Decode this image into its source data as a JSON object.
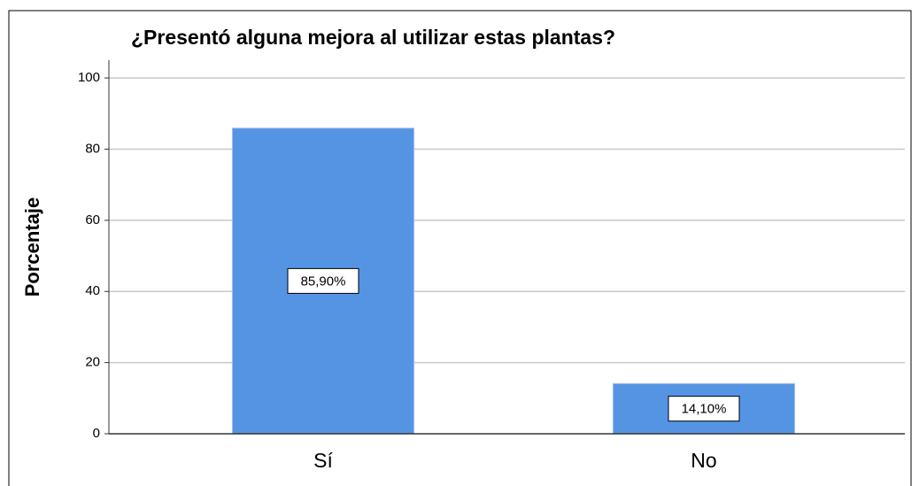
{
  "chart_data": {
    "type": "bar",
    "title": "¿Presentó alguna mejora al utilizar estas plantas?",
    "y_label": "Porcentaje",
    "categories": [
      "Sí",
      "No"
    ],
    "values": [
      85.9,
      14.1
    ],
    "value_labels": [
      "85,90%",
      "14,10%"
    ],
    "color": "#5594e3",
    "ylim": [
      0,
      105
    ],
    "yticks": [
      0,
      20,
      40,
      60,
      80,
      100
    ],
    "grid": true
  }
}
